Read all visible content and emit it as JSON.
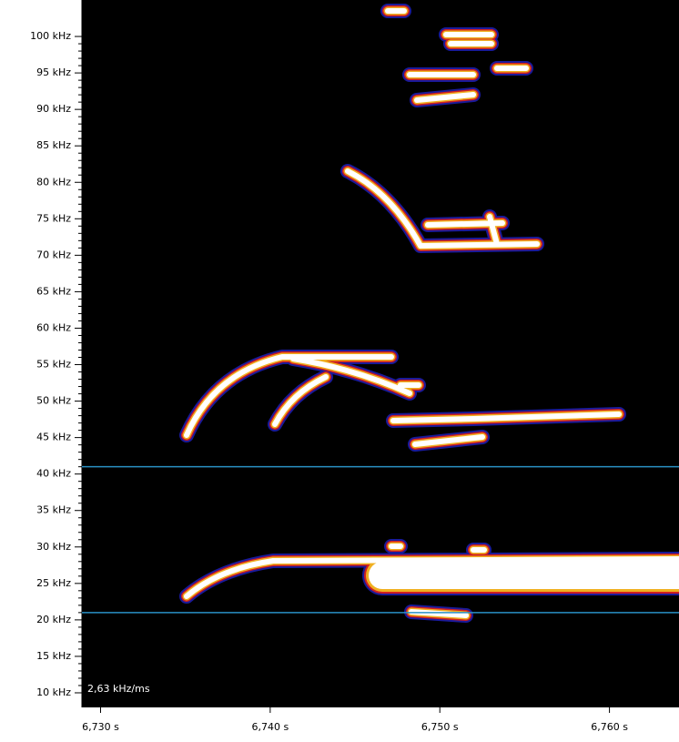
{
  "chart_data": {
    "type": "spectrogram",
    "annotation": "2,63 kHz/ms",
    "xlim": [
      6.7289,
      6.7641
    ],
    "xticks": [
      {
        "value": 6.73,
        "label": "6,730 s"
      },
      {
        "value": 6.74,
        "label": "6,740 s"
      },
      {
        "value": 6.75,
        "label": "6,750 s"
      },
      {
        "value": 6.76,
        "label": "6,760 s"
      }
    ],
    "ylim": [
      8,
      105
    ],
    "yticks": [
      {
        "value": 10,
        "label": "10 kHz"
      },
      {
        "value": 15,
        "label": "15 kHz"
      },
      {
        "value": 20,
        "label": "20 kHz"
      },
      {
        "value": 25,
        "label": "25 kHz"
      },
      {
        "value": 30,
        "label": "30 kHz"
      },
      {
        "value": 35,
        "label": "35 kHz"
      },
      {
        "value": 40,
        "label": "40 kHz"
      },
      {
        "value": 45,
        "label": "45 kHz"
      },
      {
        "value": 50,
        "label": "50 kHz"
      },
      {
        "value": 55,
        "label": "55 kHz"
      },
      {
        "value": 60,
        "label": "60 kHz"
      },
      {
        "value": 65,
        "label": "65 kHz"
      },
      {
        "value": 70,
        "label": "70 kHz"
      },
      {
        "value": 75,
        "label": "75 kHz"
      },
      {
        "value": 80,
        "label": "80 kHz"
      },
      {
        "value": 85,
        "label": "85 kHz"
      },
      {
        "value": 90,
        "label": "90 kHz"
      },
      {
        "value": 95,
        "label": "95 kHz"
      },
      {
        "value": 100,
        "label": "100 kHz"
      }
    ],
    "hlines": [
      41,
      21
    ],
    "hline_color": "#2a90c4"
  }
}
